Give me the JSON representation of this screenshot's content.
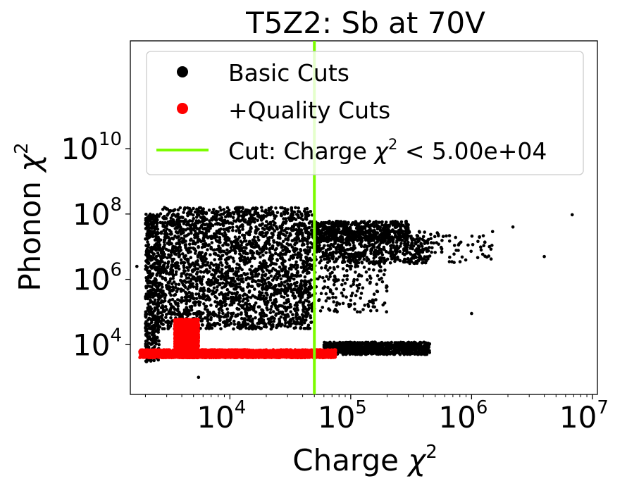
{
  "chart_data": {
    "type": "scatter",
    "title": "T5Z2: Sb at 70V",
    "xlabel": "Charge",
    "ylabel": "Phonon",
    "axis_symbol": "χ",
    "axis_power": "2",
    "xscale": "log",
    "yscale": "log",
    "xlim": [
      1500,
      11000000
    ],
    "ylim": [
      300,
      20000000000000
    ],
    "x_ticks": [
      {
        "base": "10",
        "exp": "4",
        "value": 10000
      },
      {
        "base": "10",
        "exp": "5",
        "value": 100000
      },
      {
        "base": "10",
        "exp": "6",
        "value": 1000000
      },
      {
        "base": "10",
        "exp": "7",
        "value": 10000000
      }
    ],
    "y_ticks": [
      {
        "base": "10",
        "exp": "4",
        "value": 10000
      },
      {
        "base": "10",
        "exp": "6",
        "value": 1000000
      },
      {
        "base": "10",
        "exp": "8",
        "value": 100000000
      },
      {
        "base": "10",
        "exp": "10",
        "value": 10000000000
      }
    ],
    "legend_position": "top-center",
    "legend": [
      {
        "label": "Basic Cuts",
        "marker": "dot",
        "color": "#000000"
      },
      {
        "label": "+Quality Cuts",
        "marker": "dot",
        "color": "#ff0000"
      },
      {
        "label_prefix": "Cut: Charge ",
        "label_suffix": " < 5.00e+04",
        "marker": "line",
        "color": "#7cfc00"
      }
    ],
    "cut_line": {
      "x": 50000,
      "color": "#7cfc00"
    },
    "series": [
      {
        "name": "Basic Cuts",
        "color": "#000000",
        "regions": [
          {
            "x": [
              2600,
              48000
            ],
            "y": [
              30000,
              160000000
            ],
            "density": "very dense"
          },
          {
            "x": [
              2000,
              2600
            ],
            "y": [
              3000,
              100000000
            ],
            "density": "medium"
          },
          {
            "x": [
              48000,
              450000
            ],
            "y": [
              3000000,
              30000000
            ],
            "density": "medium"
          },
          {
            "x": [
              48000,
              1500000
            ],
            "y": [
              3000000,
              30000000
            ],
            "density": "sparse"
          },
          {
            "x": [
              48000,
              300000
            ],
            "y": [
              15000000,
              60000000
            ],
            "density": "medium"
          },
          {
            "x": [
              60000,
              450000
            ],
            "y": [
              5000,
              12000
            ],
            "density": "dense"
          },
          {
            "x": [
              48000,
              200000
            ],
            "y": [
              100000,
              3000000
            ],
            "density": "sparse"
          }
        ],
        "outliers": [
          {
            "x": 5500,
            "y": 1000
          },
          {
            "x": 6800000,
            "y": 95000000
          },
          {
            "x": 1700,
            "y": 2500000
          },
          {
            "x": 1000000,
            "y": 90000
          },
          {
            "x": 4000000,
            "y": 5000000
          },
          {
            "x": 2200000,
            "y": 40000000
          }
        ]
      },
      {
        "name": "+Quality Cuts",
        "color": "#ff0000",
        "regions": [
          {
            "x": [
              1800,
              75000
            ],
            "y": [
              4000,
              7000
            ],
            "density": "very dense"
          },
          {
            "x": [
              3500,
              5500
            ],
            "y": [
              4000,
              60000
            ],
            "density": "very dense"
          }
        ]
      }
    ]
  }
}
